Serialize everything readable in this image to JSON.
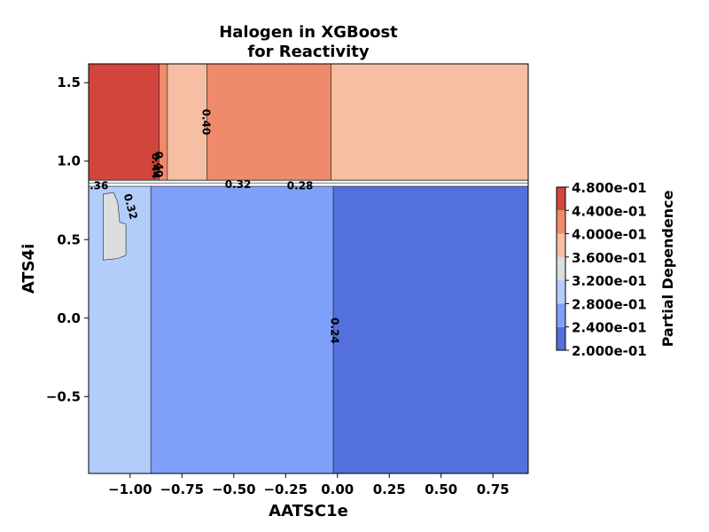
{
  "chart_data": {
    "type": "contour",
    "title_lines": [
      "Halogen in XGBoost",
      "for Reactivity"
    ],
    "xlabel": "AATSC1e",
    "ylabel": "ATS4i",
    "xlim": [
      -1.2,
      0.92
    ],
    "ylim": [
      -0.99,
      1.62
    ],
    "x_ticks": [
      -1.0,
      -0.75,
      -0.5,
      -0.25,
      0.0,
      0.25,
      0.5,
      0.75
    ],
    "x_tick_labels": [
      "−1.00",
      "−0.75",
      "−0.50",
      "−0.25",
      "0.00",
      "0.25",
      "0.50",
      "0.75"
    ],
    "y_ticks": [
      -0.5,
      0.0,
      0.5,
      1.0,
      1.5
    ],
    "y_tick_labels": [
      "−0.5",
      "0.0",
      "0.5",
      "1.0",
      "1.5"
    ],
    "levels": [
      0.2,
      0.24,
      0.28,
      0.32,
      0.36,
      0.4,
      0.44,
      0.48
    ],
    "level_colors": [
      "#5470de",
      "#7fa0f9",
      "#b3cdfb",
      "#dcdddd",
      "#f6bea2",
      "#ef8b6c",
      "#d1453c"
    ],
    "regions": [
      {
        "band": 6,
        "points": [
          [
            -1.2,
            1.62
          ],
          [
            -0.86,
            1.62
          ],
          [
            -0.86,
            0.88
          ],
          [
            -1.2,
            0.88
          ]
        ]
      },
      {
        "band": 5,
        "points": [
          [
            -0.86,
            1.62
          ],
          [
            -0.82,
            1.62
          ],
          [
            -0.82,
            0.88
          ],
          [
            -0.86,
            0.88
          ]
        ]
      },
      {
        "band": 4,
        "points": [
          [
            -0.82,
            1.62
          ],
          [
            -0.63,
            1.62
          ],
          [
            -0.63,
            0.88
          ],
          [
            -0.82,
            0.88
          ]
        ]
      },
      {
        "band": 5,
        "points": [
          [
            -0.63,
            1.62
          ],
          [
            -0.03,
            1.62
          ],
          [
            -0.03,
            0.88
          ],
          [
            -0.63,
            0.88
          ]
        ]
      },
      {
        "band": 4,
        "points": [
          [
            -0.03,
            1.62
          ],
          [
            0.92,
            1.62
          ],
          [
            0.92,
            0.88
          ],
          [
            -0.03,
            0.88
          ]
        ]
      },
      {
        "band": 2,
        "points": [
          [
            -1.2,
            0.84
          ],
          [
            -0.9,
            0.84
          ],
          [
            -0.9,
            -0.99
          ],
          [
            -1.2,
            -0.99
          ]
        ]
      },
      {
        "band": 1,
        "points": [
          [
            -0.9,
            0.84
          ],
          [
            -0.02,
            0.84
          ],
          [
            -0.02,
            -0.99
          ],
          [
            -0.9,
            -0.99
          ]
        ]
      },
      {
        "band": 0,
        "points": [
          [
            -0.02,
            0.84
          ],
          [
            0.92,
            0.84
          ],
          [
            0.92,
            -0.99
          ],
          [
            -0.02,
            -0.99
          ]
        ]
      },
      {
        "band": 3,
        "points": [
          [
            -1.13,
            0.79
          ],
          [
            -1.08,
            0.8
          ],
          [
            -1.06,
            0.74
          ],
          [
            -1.05,
            0.61
          ],
          [
            -1.02,
            0.6
          ],
          [
            -1.02,
            0.4
          ],
          [
            -1.06,
            0.38
          ],
          [
            -1.13,
            0.37
          ]
        ]
      }
    ],
    "contour_labels": [
      {
        "text": "0.40",
        "x": -0.635,
        "y": 1.25,
        "rotate": 90
      },
      {
        "text": "0.40",
        "x": -0.865,
        "y": 0.98,
        "rotate": 90
      },
      {
        "text": "0.44",
        "x": -0.88,
        "y": 0.97,
        "rotate": 90
      },
      {
        "text": "0.32",
        "x": -1.0,
        "y": 0.71,
        "rotate": 75
      },
      {
        "text": ".36",
        "x": -1.15,
        "y": 0.84,
        "rotate": 0
      },
      {
        "text": "0.32",
        "x": -0.48,
        "y": 0.85,
        "rotate": 0
      },
      {
        "text": "0.28",
        "x": -0.18,
        "y": 0.84,
        "rotate": 0
      },
      {
        "text": "0.24",
        "x": -0.015,
        "y": -0.08,
        "rotate": 90
      }
    ],
    "colorbar": {
      "label": "Partial Dependence",
      "tick_labels": [
        "2.000e-01",
        "2.400e-01",
        "2.800e-01",
        "3.200e-01",
        "3.600e-01",
        "4.000e-01",
        "4.400e-01",
        "4.800e-01"
      ]
    }
  }
}
